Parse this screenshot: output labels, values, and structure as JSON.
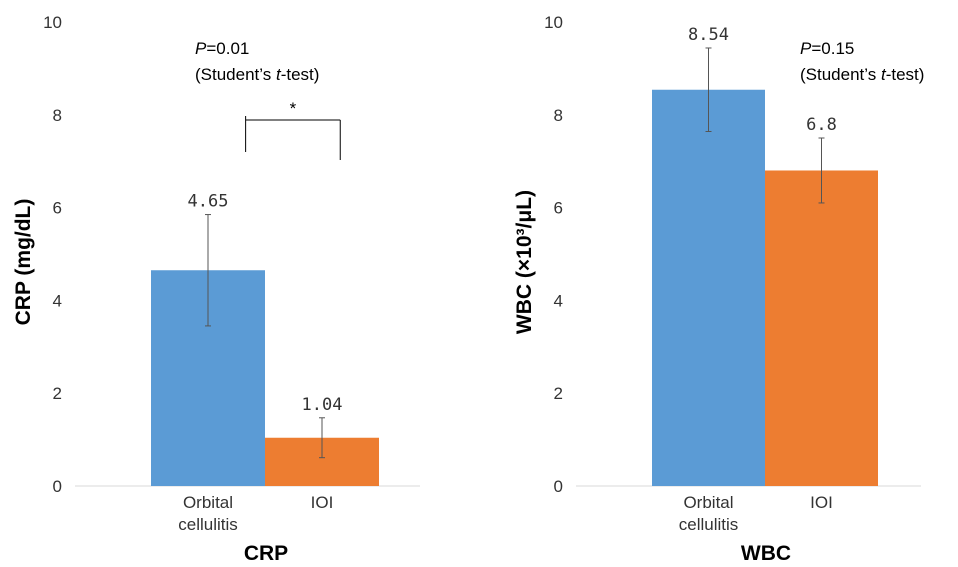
{
  "chart_data": [
    {
      "type": "bar",
      "title": "",
      "xlabel": "CRP",
      "ylabel": "CRP (mg/dL)",
      "ylim": [
        0,
        10
      ],
      "yticks": [
        0,
        2,
        4,
        6,
        8,
        10
      ],
      "grid": false,
      "categories": [
        {
          "lines": [
            "Orbital",
            "cellulitis"
          ],
          "value": 4.65,
          "label": "4.65",
          "err": 1.2,
          "color": "#5b9bd5"
        },
        {
          "lines": [
            "IOI"
          ],
          "value": 1.04,
          "label": "1.04",
          "err": 0.43,
          "color": "#ed7d31"
        }
      ],
      "annotation": {
        "p_letter": "P",
        "p_value": "=0.01",
        "test_prefix": "(Student’s ",
        "test_italic": "t",
        "test_suffix": "-test)"
      },
      "significance": {
        "marker": "*",
        "from": 0,
        "to": 1
      }
    },
    {
      "type": "bar",
      "title": "",
      "xlabel": "WBC",
      "ylabel": "WBC (×10³/μL)",
      "ylim": [
        0,
        10
      ],
      "yticks": [
        0,
        2,
        4,
        6,
        8,
        10
      ],
      "grid": false,
      "categories": [
        {
          "lines": [
            "Orbital",
            "cellulitis"
          ],
          "value": 8.54,
          "label": "8.54",
          "err": 0.9,
          "color": "#5b9bd5"
        },
        {
          "lines": [
            "IOI"
          ],
          "value": 6.8,
          "label": "6.8",
          "err": 0.7,
          "color": "#ed7d31"
        }
      ],
      "annotation": {
        "p_letter": "P",
        "p_value": "=0.15",
        "test_prefix": "(Student’s ",
        "test_italic": "t",
        "test_suffix": "-test)"
      }
    }
  ]
}
